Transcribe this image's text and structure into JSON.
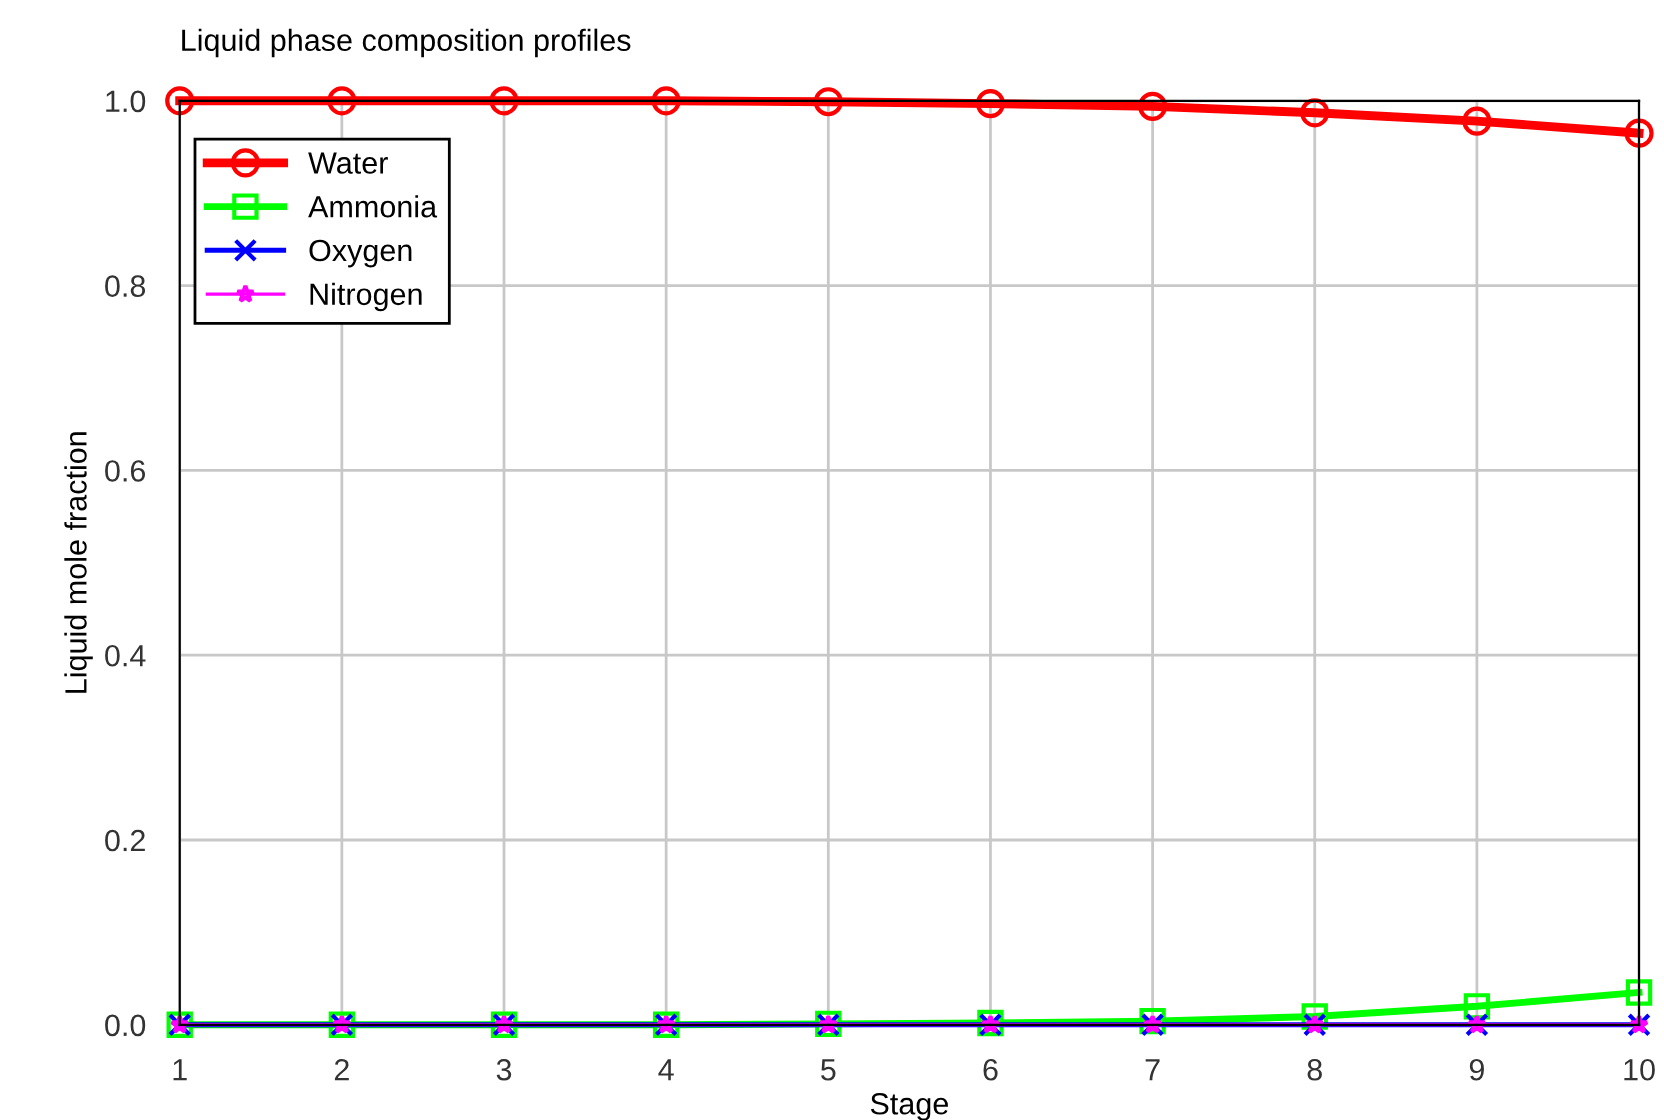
{
  "chart_data": {
    "type": "line",
    "title": "Liquid phase composition profiles",
    "xlabel": "Stage",
    "ylabel": "Liquid mole fraction",
    "x": [
      1,
      2,
      3,
      4,
      5,
      6,
      7,
      8,
      9,
      10
    ],
    "series": [
      {
        "name": "Water",
        "color": "#ff0000",
        "marker": "circle",
        "values": [
          1.0,
          1.0,
          1.0,
          1.0,
          0.999,
          0.997,
          0.994,
          0.987,
          0.978,
          0.965
        ]
      },
      {
        "name": "Ammonia",
        "color": "#00ff00",
        "marker": "square",
        "values": [
          0.0,
          0.0,
          0.0,
          0.0,
          0.001,
          0.002,
          0.004,
          0.009,
          0.02,
          0.035
        ]
      },
      {
        "name": "Oxygen",
        "color": "#0000ff",
        "marker": "cross",
        "values": [
          0,
          0,
          0,
          0,
          0,
          0,
          0,
          0,
          0,
          0
        ]
      },
      {
        "name": "Nitrogen",
        "color": "#ff00ff",
        "marker": "star",
        "values": [
          0,
          0,
          0,
          0,
          0,
          0,
          0,
          0,
          0,
          0
        ]
      }
    ],
    "xlim": [
      1,
      10
    ],
    "xticks": [
      1,
      2,
      3,
      4,
      5,
      6,
      7,
      8,
      9,
      10
    ],
    "ylim": [
      0,
      1.0
    ],
    "yticks": [
      {
        "value": 0,
        "label": "0.0"
      },
      {
        "value": 0.2,
        "label": "0.2"
      },
      {
        "value": 0.4,
        "label": "0.4"
      },
      {
        "value": 0.6,
        "label": "0.6"
      },
      {
        "value": 0.8,
        "label": "0.8"
      },
      {
        "value": 1.0,
        "label": "1.0"
      }
    ],
    "grid": true,
    "legend": "top left"
  }
}
